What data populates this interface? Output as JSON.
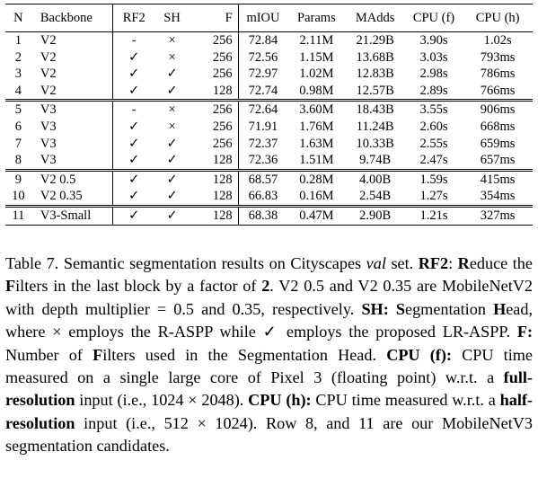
{
  "table": {
    "headers": [
      "N",
      "Backbone",
      "RF2",
      "SH",
      "F",
      "mIOU",
      "Params",
      "MAdds",
      "CPU (f)",
      "CPU (h)"
    ],
    "groups": [
      [
        [
          "1",
          "V2",
          "-",
          "×",
          "256",
          "72.84",
          "2.11M",
          "21.29B",
          "3.90s",
          "1.02s"
        ],
        [
          "2",
          "V2",
          "✓",
          "×",
          "256",
          "72.56",
          "1.15M",
          "13.68B",
          "3.03s",
          "793ms"
        ],
        [
          "3",
          "V2",
          "✓",
          "✓",
          "256",
          "72.97",
          "1.02M",
          "12.83B",
          "2.98s",
          "786ms"
        ],
        [
          "4",
          "V2",
          "✓",
          "✓",
          "128",
          "72.74",
          "0.98M",
          "12.57B",
          "2.89s",
          "766ms"
        ]
      ],
      [
        [
          "5",
          "V3",
          "-",
          "×",
          "256",
          "72.64",
          "3.60M",
          "18.43B",
          "3.55s",
          "906ms"
        ],
        [
          "6",
          "V3",
          "✓",
          "×",
          "256",
          "71.91",
          "1.76M",
          "11.24B",
          "2.60s",
          "668ms"
        ],
        [
          "7",
          "V3",
          "✓",
          "✓",
          "256",
          "72.37",
          "1.63M",
          "10.33B",
          "2.55s",
          "659ms"
        ],
        [
          "8",
          "V3",
          "✓",
          "✓",
          "128",
          "72.36",
          "1.51M",
          "9.74B",
          "2.47s",
          "657ms"
        ]
      ],
      [
        [
          "9",
          "V2 0.5",
          "✓",
          "✓",
          "128",
          "68.57",
          "0.28M",
          "4.00B",
          "1.59s",
          "415ms"
        ],
        [
          "10",
          "V2 0.35",
          "✓",
          "✓",
          "128",
          "66.83",
          "0.16M",
          "2.54B",
          "1.27s",
          "354ms"
        ]
      ],
      [
        [
          "11",
          "V3-Small",
          "✓",
          "✓",
          "128",
          "68.38",
          "0.47M",
          "2.90B",
          "1.21s",
          "327ms"
        ]
      ]
    ]
  },
  "caption": {
    "t1": "Table 7. Semantic segmentation results on Cityscapes ",
    "t2": "val",
    "t3": " set. ",
    "b1": "RF2",
    "t4": ": ",
    "b2": "R",
    "t5": "educe the ",
    "b3": "F",
    "t6": "ilters in the last block by a factor of ",
    "b4": "2",
    "t7": ". V2 0.5 and V2 0.35 are MobileNetV2 with depth multiplier = 0.5 and 0.35, respectively. ",
    "b5": "SH: S",
    "t8": "egmentation ",
    "b6": "H",
    "t9": "ead, where × employs the R-ASPP while ✓ employs the proposed LR-ASPP. ",
    "b7": "F:",
    "t10": " Number of ",
    "b8": "F",
    "t11": "ilters used in the Segmentation Head. ",
    "b9": "CPU (f):",
    "t12": " CPU time measured on a single large core of Pixel 3 (floating point) w.r.t. a ",
    "b10": "full-resolution",
    "t13": " input (i.e., 1024 × 2048). ",
    "b11": "CPU (h):",
    "t14": " CPU time measured w.r.t. a ",
    "b12": "half-resolution",
    "t15": " input (i.e., 512 × 1024). Row 8, and 11 are our MobileNetV3 segmentation candidates."
  }
}
